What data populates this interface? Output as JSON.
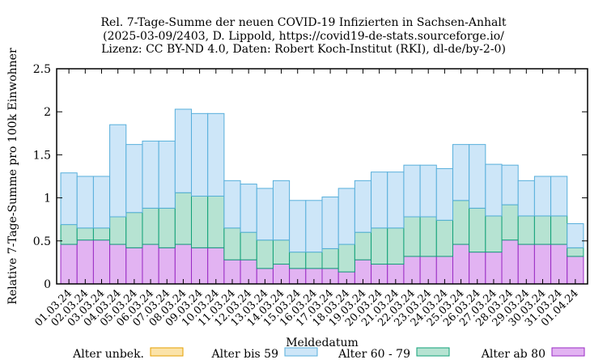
{
  "title_lines": [
    "Rel. 7-Tage-Summe der neuen COVID-19 Infizierten in Sachsen-Anhalt",
    "(2025-03-09/2403, D. Lippold, https://covid19-de-stats.sourceforge.io/",
    "Lizenz: CC BY-ND 4.0, Daten: Robert Koch-Institut (RKI), dl-de/by-2-0)"
  ],
  "chart_data": {
    "type": "bar",
    "stacked": true,
    "xlabel": "Meldedatum",
    "ylabel": "Relative 7-Tage-Summe pro 100k Einwohner",
    "ylim": [
      0,
      2.5
    ],
    "yticks": [
      0,
      0.5,
      1,
      1.5,
      2,
      2.5
    ],
    "ytick_labels": [
      "0",
      "0.5",
      "1",
      "1.5",
      "2",
      "2.5"
    ],
    "grid": false,
    "legend_position": "bottom",
    "categories": [
      "01.03.24",
      "02.03.24",
      "03.03.24",
      "04.03.24",
      "05.03.24",
      "06.03.24",
      "07.03.24",
      "08.03.24",
      "09.03.24",
      "10.03.24",
      "11.03.24",
      "12.03.24",
      "13.03.24",
      "14.03.24",
      "15.03.24",
      "16.03.24",
      "17.03.24",
      "18.03.24",
      "19.03.24",
      "20.03.24",
      "21.03.24",
      "22.03.24",
      "23.03.24",
      "24.03.24",
      "25.03.24",
      "26.03.24",
      "27.03.24",
      "28.03.24",
      "29.03.24",
      "30.03.24",
      "31.03.24",
      "01.04.24"
    ],
    "series": [
      {
        "name": "Alter ab 80",
        "color": "#e2b3f2",
        "edge": "#9a2bc4",
        "values": [
          0.46,
          0.51,
          0.51,
          0.46,
          0.42,
          0.46,
          0.42,
          0.46,
          0.42,
          0.42,
          0.28,
          0.28,
          0.18,
          0.23,
          0.18,
          0.18,
          0.18,
          0.14,
          0.28,
          0.23,
          0.23,
          0.32,
          0.32,
          0.32,
          0.46,
          0.37,
          0.37,
          0.51,
          0.46,
          0.46,
          0.46,
          0.32
        ]
      },
      {
        "name": "Alter 60 - 79",
        "color": "#b6e3d2",
        "edge": "#11a078",
        "values": [
          0.23,
          0.14,
          0.14,
          0.32,
          0.41,
          0.42,
          0.46,
          0.6,
          0.6,
          0.6,
          0.37,
          0.32,
          0.33,
          0.28,
          0.19,
          0.19,
          0.23,
          0.32,
          0.32,
          0.42,
          0.42,
          0.46,
          0.46,
          0.42,
          0.51,
          0.51,
          0.42,
          0.41,
          0.33,
          0.33,
          0.33,
          0.1
        ]
      },
      {
        "name": "Alter bis 59",
        "color": "#cde6f8",
        "edge": "#57afdb",
        "values": [
          0.6,
          0.6,
          0.6,
          1.07,
          0.79,
          0.78,
          0.78,
          0.97,
          0.96,
          0.96,
          0.55,
          0.56,
          0.6,
          0.69,
          0.6,
          0.6,
          0.6,
          0.65,
          0.6,
          0.65,
          0.65,
          0.6,
          0.6,
          0.6,
          0.65,
          0.74,
          0.6,
          0.46,
          0.41,
          0.46,
          0.46,
          0.28
        ]
      },
      {
        "name": "Alter unbek.",
        "color": "#fbe3a9",
        "edge": "#e69f00",
        "values": [
          0,
          0,
          0,
          0,
          0,
          0,
          0,
          0,
          0,
          0,
          0,
          0,
          0,
          0,
          0,
          0,
          0,
          0,
          0,
          0,
          0,
          0,
          0,
          0,
          0,
          0,
          0,
          0,
          0,
          0,
          0,
          0
        ]
      }
    ],
    "legend_order": [
      "Alter unbek.",
      "Alter bis 59",
      "Alter 60 - 79",
      "Alter ab 80"
    ]
  }
}
